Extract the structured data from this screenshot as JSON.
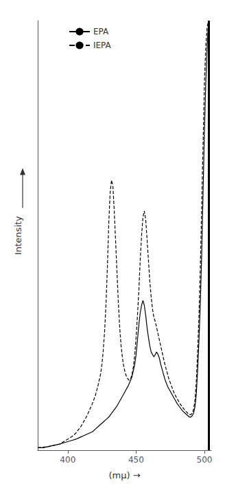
{
  "chart_data": {
    "type": "line",
    "xlabel": "(mμ) →",
    "ylabel": "Intensity",
    "xlim": [
      378,
      505
    ],
    "ylim": [
      0.0,
      3.5
    ],
    "xticks": [
      400,
      450,
      500
    ],
    "yticks": [],
    "tick_labels": "x",
    "grid": false,
    "legend": "upper left",
    "vlines": [
      503
    ],
    "series": [
      {
        "name": "EPA",
        "color": "#000000",
        "line_style": "solid",
        "x": [
          378,
          382,
          386,
          390,
          394,
          397,
          400,
          403,
          406,
          408,
          410,
          412,
          414,
          416,
          418,
          420,
          422,
          424,
          426,
          428,
          430,
          432,
          434,
          436,
          438,
          440,
          442,
          444,
          446,
          447,
          448,
          449,
          450,
          451,
          452,
          453,
          454,
          455,
          456,
          457,
          458,
          459,
          460,
          461,
          462,
          463,
          464,
          465,
          466,
          467,
          468,
          469,
          470,
          471,
          472,
          473,
          474,
          475,
          476,
          477,
          478,
          480,
          482,
          484,
          486,
          488,
          489,
          490,
          491,
          492,
          493,
          494,
          495,
          496,
          497,
          498,
          499,
          500,
          501,
          502,
          503
        ],
        "values": [
          0.02,
          0.02,
          0.03,
          0.04,
          0.05,
          0.06,
          0.07,
          0.08,
          0.09,
          0.1,
          0.11,
          0.12,
          0.13,
          0.14,
          0.15,
          0.17,
          0.19,
          0.21,
          0.23,
          0.25,
          0.27,
          0.3,
          0.33,
          0.36,
          0.4,
          0.44,
          0.48,
          0.52,
          0.57,
          0.6,
          0.65,
          0.7,
          0.78,
          0.9,
          1.02,
          1.12,
          1.18,
          1.22,
          1.18,
          1.1,
          1.0,
          0.92,
          0.85,
          0.8,
          0.78,
          0.76,
          0.78,
          0.8,
          0.78,
          0.75,
          0.7,
          0.66,
          0.62,
          0.58,
          0.55,
          0.52,
          0.5,
          0.48,
          0.46,
          0.44,
          0.42,
          0.38,
          0.35,
          0.32,
          0.3,
          0.28,
          0.27,
          0.27,
          0.28,
          0.3,
          0.35,
          0.45,
          0.65,
          0.9,
          1.2,
          1.6,
          2.1,
          2.6,
          3.0,
          3.3,
          3.5
        ]
      },
      {
        "name": "IEPA",
        "color": "#000000",
        "line_style": "dashed",
        "x": [
          378,
          382,
          386,
          390,
          394,
          397,
          400,
          403,
          406,
          408,
          410,
          412,
          414,
          416,
          418,
          420,
          422,
          424,
          425,
          426,
          427,
          428,
          429,
          430,
          431,
          432,
          433,
          434,
          435,
          436,
          437,
          438,
          439,
          440,
          441,
          442,
          443,
          444,
          445,
          446,
          447,
          448,
          449,
          450,
          451,
          452,
          453,
          454,
          455,
          456,
          457,
          458,
          459,
          460,
          461,
          462,
          463,
          464,
          465,
          466,
          467,
          468,
          469,
          470,
          471,
          472,
          473,
          474,
          475,
          476,
          477,
          478,
          480,
          482,
          484,
          486,
          488,
          489,
          490,
          491,
          492,
          493,
          494,
          495,
          496,
          497,
          498,
          499,
          500,
          501,
          502,
          503
        ],
        "values": [
          0.02,
          0.025,
          0.03,
          0.04,
          0.05,
          0.07,
          0.09,
          0.11,
          0.14,
          0.17,
          0.2,
          0.24,
          0.28,
          0.33,
          0.38,
          0.44,
          0.52,
          0.62,
          0.7,
          0.82,
          0.98,
          1.2,
          1.5,
          1.85,
          2.1,
          2.2,
          2.15,
          1.95,
          1.7,
          1.45,
          1.2,
          1.0,
          0.85,
          0.75,
          0.68,
          0.63,
          0.6,
          0.58,
          0.57,
          0.58,
          0.62,
          0.68,
          0.78,
          0.92,
          1.1,
          1.3,
          1.55,
          1.75,
          1.9,
          1.95,
          1.88,
          1.72,
          1.55,
          1.38,
          1.25,
          1.15,
          1.08,
          1.05,
          1.0,
          0.95,
          0.9,
          0.85,
          0.8,
          0.75,
          0.7,
          0.66,
          0.62,
          0.58,
          0.55,
          0.52,
          0.49,
          0.46,
          0.42,
          0.38,
          0.35,
          0.32,
          0.3,
          0.29,
          0.29,
          0.3,
          0.33,
          0.4,
          0.55,
          0.8,
          1.1,
          1.5,
          2.0,
          2.5,
          3.0,
          3.3,
          3.45,
          3.5
        ]
      }
    ]
  }
}
